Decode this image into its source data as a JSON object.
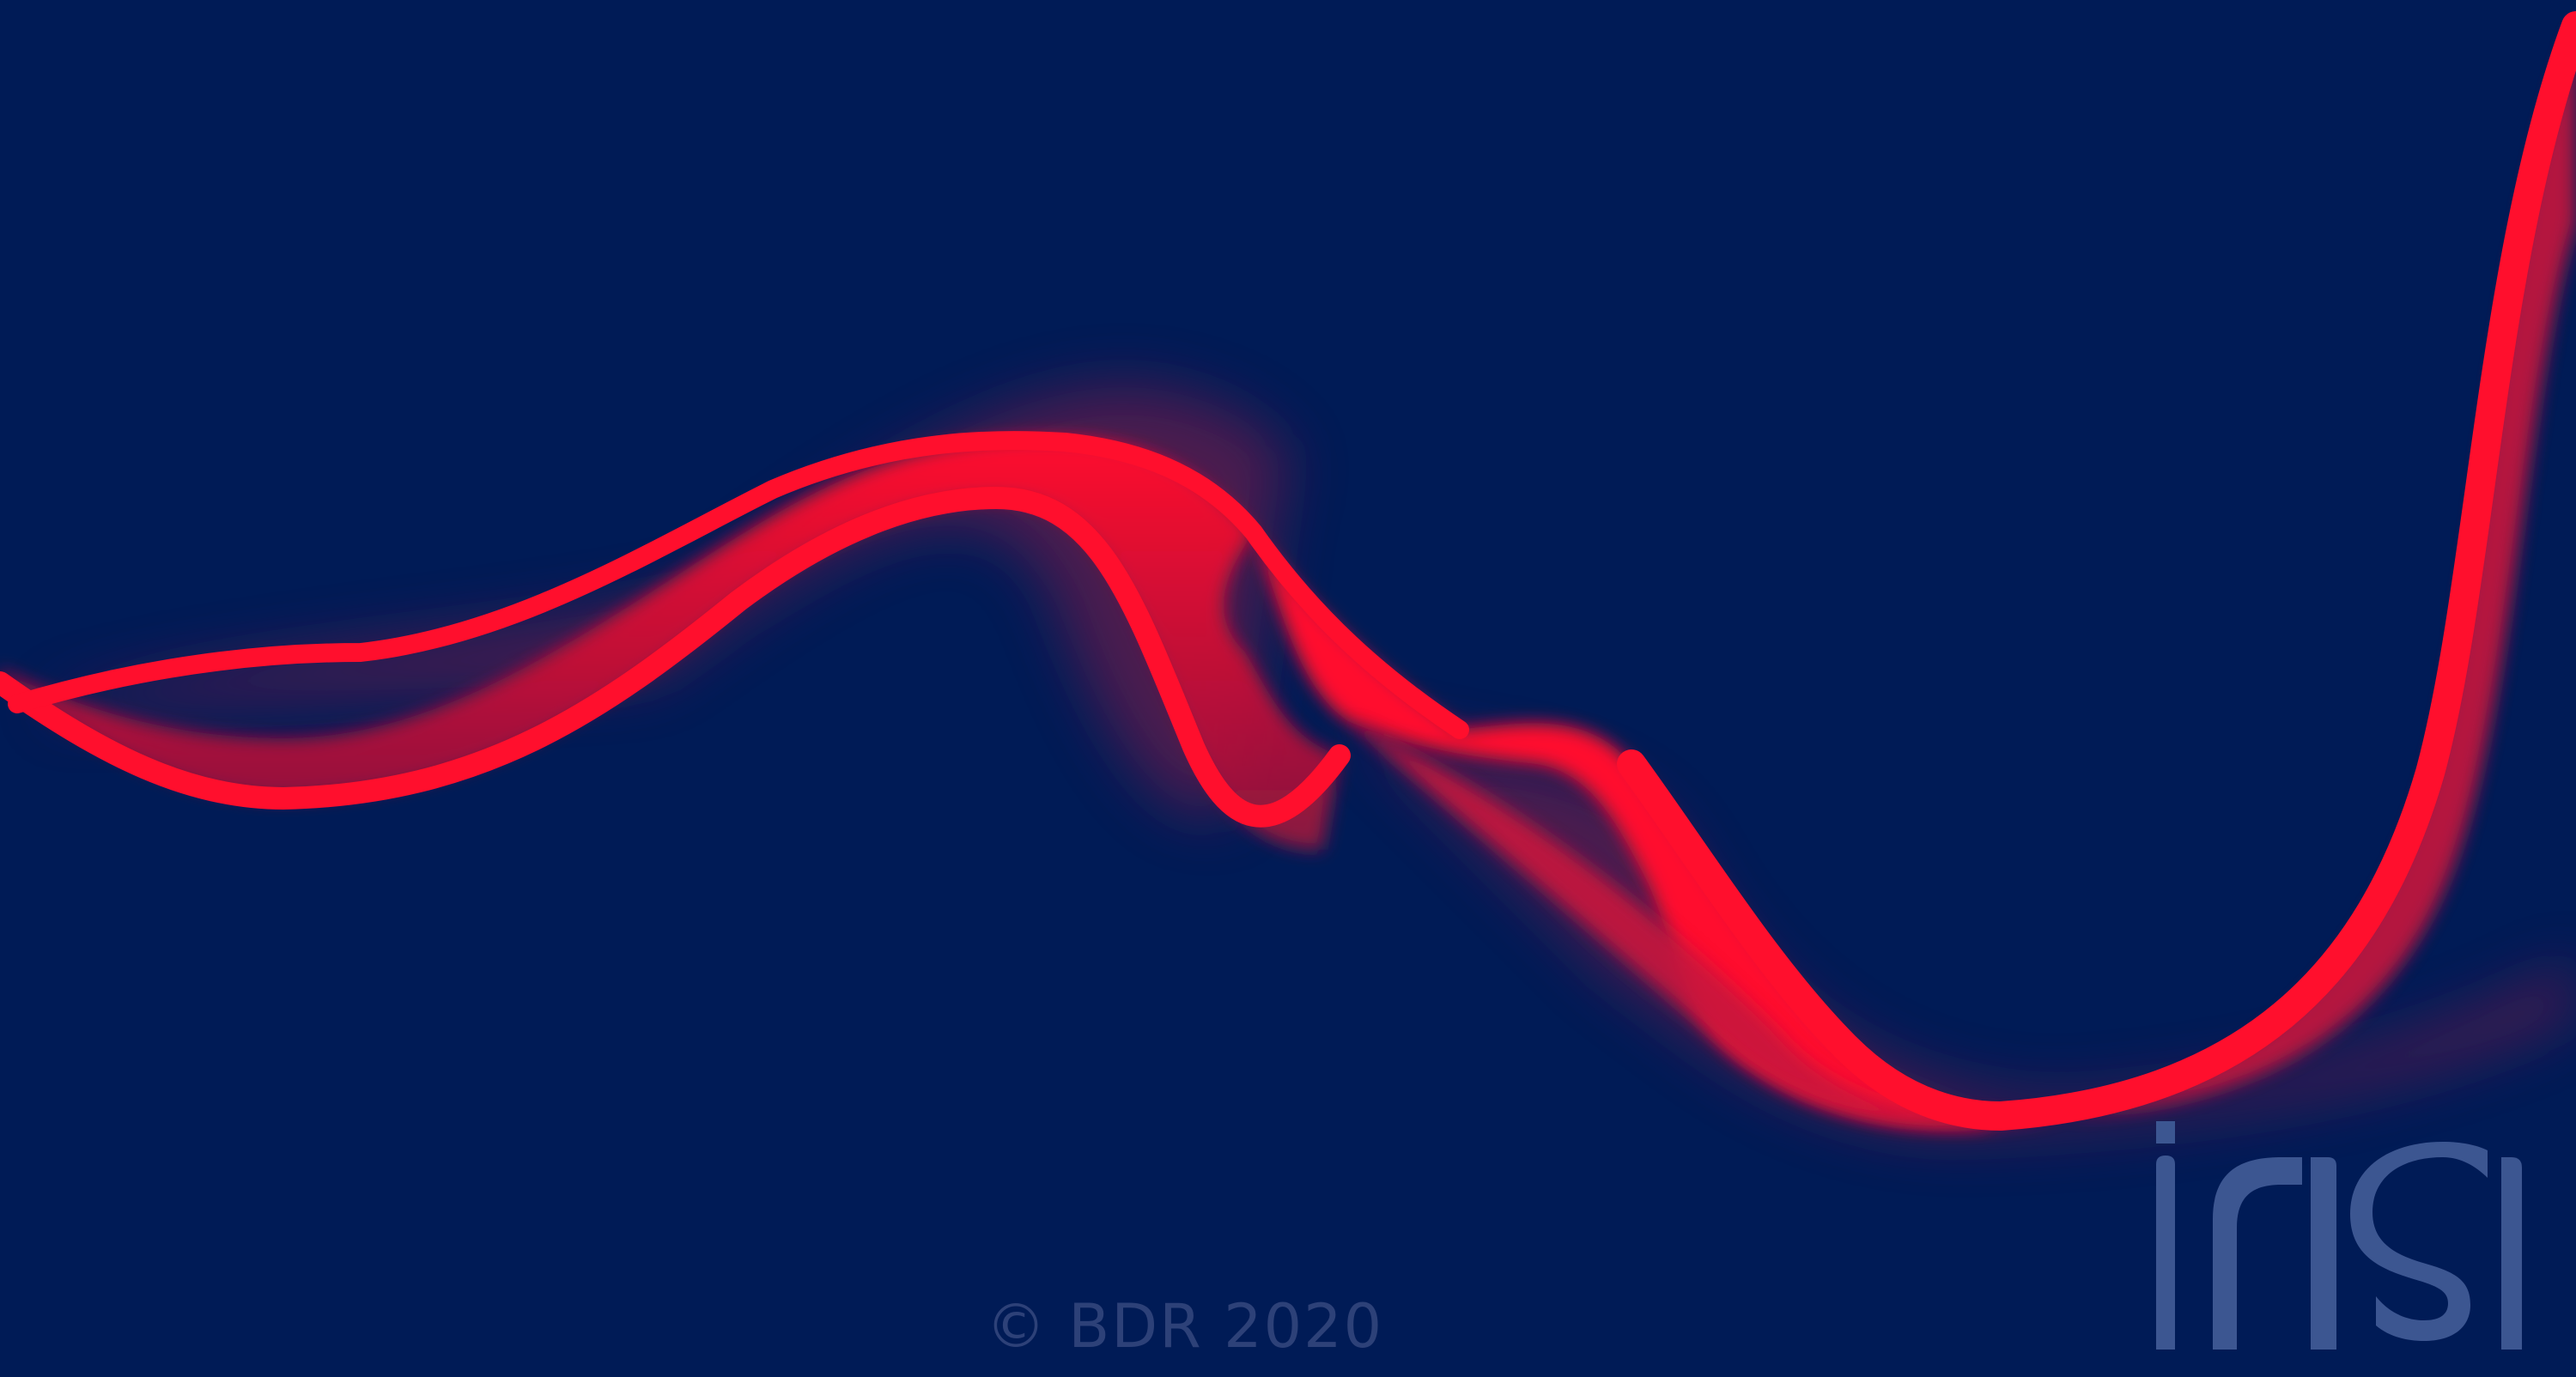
{
  "background_color": "#001b56",
  "wave": {
    "color": "#ff0f2d",
    "shadow_color": "#6e1445"
  },
  "footer": {
    "copyright": "© BDR 2020"
  },
  "logo": {
    "text": "insi",
    "color": "#3c5691"
  }
}
